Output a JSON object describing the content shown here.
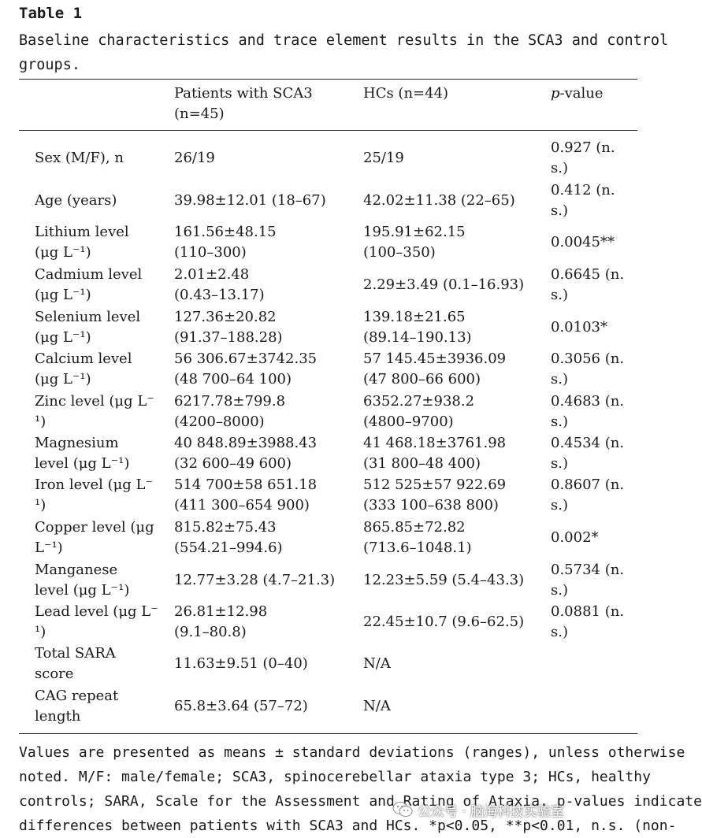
{
  "table": {
    "label": "Table 1",
    "caption_lines": [
      "Baseline characteristics and trace element results in the SCA3 and control",
      "groups."
    ],
    "header": {
      "col2": [
        "Patients with SCA3",
        "(n=45)"
      ],
      "col3": [
        "HCs (n=44)"
      ],
      "col4": [
        "p-value"
      ]
    },
    "rows": [
      {
        "c1": [
          "Sex (M/F), n"
        ],
        "c2": [
          "26/19"
        ],
        "c3": [
          "25/19"
        ],
        "c4": [
          "0.927 (n.",
          "s.)"
        ]
      },
      {
        "c1": [
          "Age (years)"
        ],
        "c2": [
          "39.98±12.01 (18–67)"
        ],
        "c3": [
          "42.02±11.38 (22–65)"
        ],
        "c4": [
          "0.412 (n.",
          "s.)"
        ]
      },
      {
        "c1": [
          "Lithium level",
          "(μg L⁻¹)"
        ],
        "c2": [
          "161.56±48.15",
          "(110–300)"
        ],
        "c3": [
          "195.91±62.15",
          "(100–350)"
        ],
        "c4": [
          "0.0045**"
        ]
      },
      {
        "c1": [
          "Cadmium level",
          "(μg L⁻¹)"
        ],
        "c2": [
          "2.01±2.48",
          "(0.43–13.17)"
        ],
        "c3": [
          "2.29±3.49 (0.1–16.93)"
        ],
        "c4": [
          "0.6645 (n.",
          "s.)"
        ]
      },
      {
        "c1": [
          "Selenium level",
          "(μg L⁻¹)"
        ],
        "c2": [
          "127.36±20.82",
          "(91.37–188.28)"
        ],
        "c3": [
          "139.18±21.65",
          "(89.14–190.13)"
        ],
        "c4": [
          "0.0103*"
        ]
      },
      {
        "c1": [
          "Calcium level",
          "(μg L⁻¹)"
        ],
        "c2": [
          "56 306.67±3742.35",
          "(48 700–64 100)"
        ],
        "c3": [
          "57 145.45±3936.09",
          "(47 800–66 600)"
        ],
        "c4": [
          "0.3056 (n.",
          "s.)"
        ]
      },
      {
        "c1": [
          "Zinc level (μg L⁻",
          "¹)"
        ],
        "c2": [
          "6217.78±799.8",
          "(4200–8000)"
        ],
        "c3": [
          "6352.27±938.2",
          "(4800–9700)"
        ],
        "c4": [
          "0.4683 (n.",
          "s.)"
        ]
      },
      {
        "c1": [
          "Magnesium",
          "level (μg L⁻¹)"
        ],
        "c2": [
          "40 848.89±3988.43",
          "(32 600–49 600)"
        ],
        "c3": [
          "41 468.18±3761.98",
          "(31 800–48 400)"
        ],
        "c4": [
          "0.4534 (n.",
          "s.)"
        ]
      },
      {
        "c1": [
          "Iron level (μg L⁻",
          "¹)"
        ],
        "c2": [
          "514 700±58 651.18",
          "(411 300–654 900)"
        ],
        "c3": [
          "512 525±57 922.69",
          "(333 100–638 800)"
        ],
        "c4": [
          "0.8607 (n.",
          "s.)"
        ]
      },
      {
        "c1": [
          "Copper level (μg",
          "L⁻¹)"
        ],
        "c2": [
          "815.82±75.43",
          "(554.21–994.6)"
        ],
        "c3": [
          "865.85±72.82",
          "(713.6–1048.1)"
        ],
        "c4": [
          "0.002*"
        ]
      },
      {
        "c1": [
          "Manganese",
          "level (μg L⁻¹)"
        ],
        "c2": [
          "12.77±3.28 (4.7–21.3)"
        ],
        "c3": [
          "12.23±5.59 (5.4–43.3)"
        ],
        "c4": [
          "0.5734 (n.",
          "s.)"
        ]
      },
      {
        "c1": [
          "Lead level (μg L⁻",
          "¹)"
        ],
        "c2": [
          "26.81±12.98",
          "(9.1–80.8)"
        ],
        "c3": [
          "22.45±10.7 (9.6–62.5)"
        ],
        "c4": [
          "0.0881 (n.",
          "s.)"
        ]
      },
      {
        "c1": [
          "Total SARA",
          "score"
        ],
        "c2": [
          "11.63±9.51 (0–40)"
        ],
        "c3": [
          "N/A"
        ],
        "c4": []
      },
      {
        "c1": [
          "CAG repeat",
          "length"
        ],
        "c2": [
          "65.8±3.64 (57–72)"
        ],
        "c3": [
          "N/A"
        ],
        "c4": []
      }
    ],
    "footnote_lines": [
      "Values are presented as means ± standard deviations (ranges), unless otherwise",
      "noted. M/F: male/female; SCA3, spinocerebellar ataxia type 3; HCs, healthy",
      "controls; SARA, Scale for the Assessment and Rating of Ataxia. p-values indicate",
      "differences between patients with SCA3 and HCs. *p<0.05, **p<0.01, n.s. (non-"
    ]
  },
  "watermark": {
    "text": "公众号 · 脑海科技实验室",
    "icon": "wechat-icon"
  }
}
